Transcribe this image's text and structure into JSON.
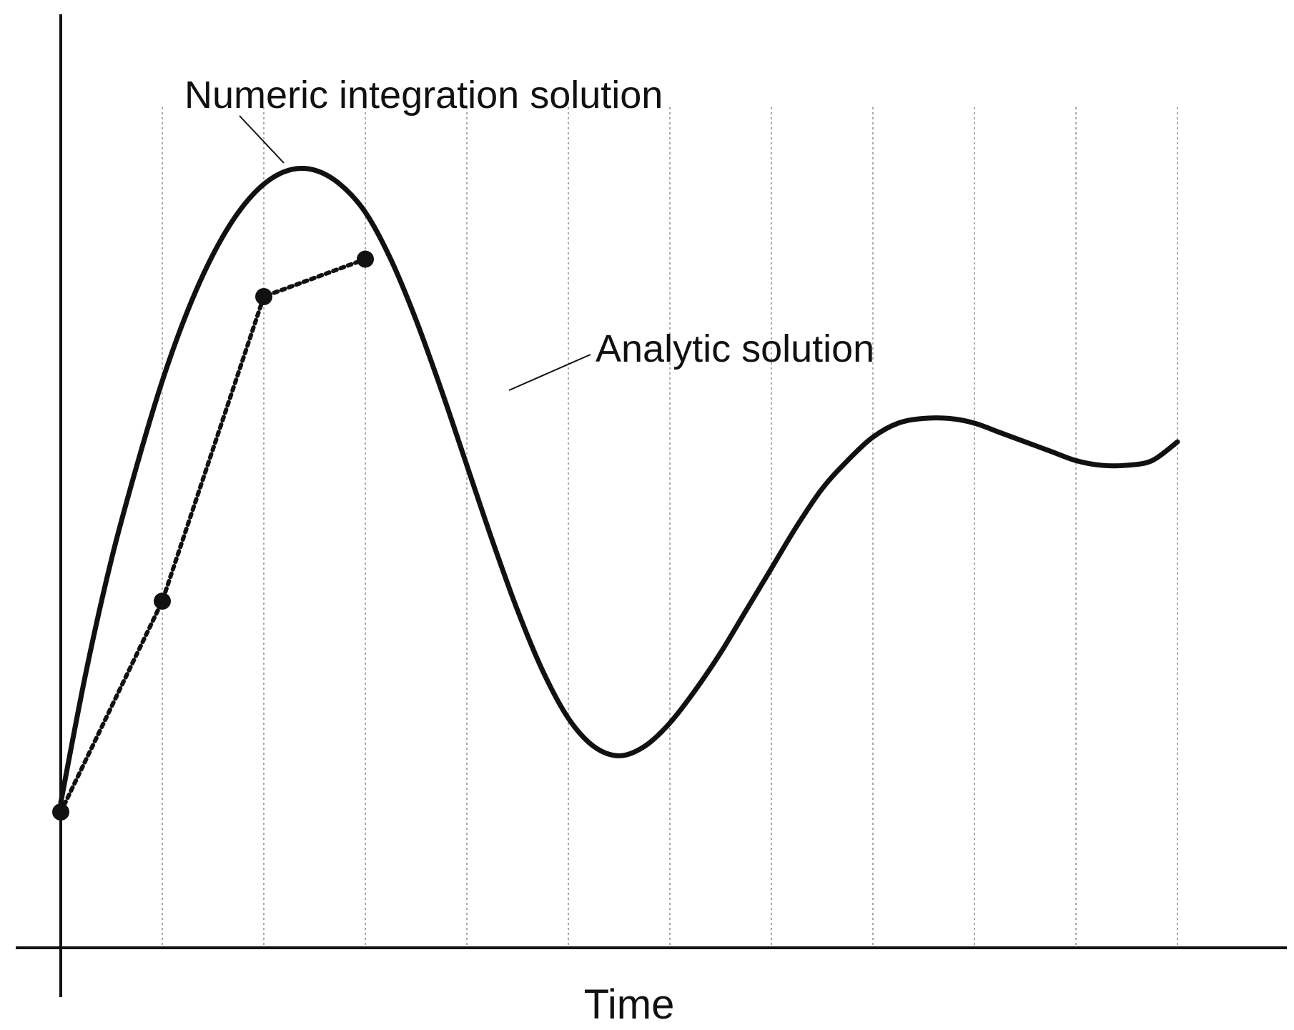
{
  "chart_data": {
    "type": "line",
    "title": "",
    "xlabel": "Time",
    "ylabel": "",
    "xlim": [
      0,
      11.5
    ],
    "ylim": [
      -0.3,
      1.5
    ],
    "grid": {
      "vertical": true,
      "horizontal": false,
      "style": "dotted"
    },
    "x_gridlines": [
      1,
      2,
      3,
      4,
      5,
      6,
      7,
      8,
      9,
      10,
      11
    ],
    "series": [
      {
        "name": "Analytic solution",
        "style": "solid",
        "color": "#111111",
        "x": [
          0,
          0.25,
          0.5,
          0.75,
          1.0,
          1.25,
          1.5,
          1.75,
          2.0,
          2.25,
          2.5,
          2.75,
          3.0,
          3.25,
          3.5,
          3.75,
          4.0,
          4.25,
          4.5,
          4.75,
          5.0,
          5.25,
          5.5,
          5.75,
          6.0,
          6.25,
          6.5,
          6.75,
          7.0,
          7.25,
          7.5,
          7.75,
          8.0,
          8.25,
          8.5,
          8.75,
          9.0,
          9.25,
          9.5,
          9.75,
          10.0,
          10.25,
          10.5,
          10.75,
          11.0
        ],
        "y": [
          0.02,
          0.3,
          0.54,
          0.74,
          0.92,
          1.07,
          1.19,
          1.28,
          1.34,
          1.37,
          1.37,
          1.34,
          1.28,
          1.18,
          1.05,
          0.9,
          0.74,
          0.58,
          0.43,
          0.3,
          0.2,
          0.14,
          0.12,
          0.14,
          0.19,
          0.26,
          0.34,
          0.43,
          0.52,
          0.61,
          0.69,
          0.75,
          0.8,
          0.83,
          0.84,
          0.84,
          0.83,
          0.81,
          0.79,
          0.77,
          0.75,
          0.74,
          0.74,
          0.75,
          0.79
        ]
      },
      {
        "name": "Numeric integration solution",
        "style": "dotted",
        "color": "#111111",
        "markers": true,
        "x": [
          0,
          1,
          2,
          3
        ],
        "y": [
          0.0,
          0.45,
          1.1,
          1.18
        ]
      }
    ],
    "annotations": [
      {
        "text": "Numeric integration solution",
        "target_series": "Numeric integration solution"
      },
      {
        "text": "Analytic solution",
        "target_series": "Analytic solution"
      }
    ]
  }
}
